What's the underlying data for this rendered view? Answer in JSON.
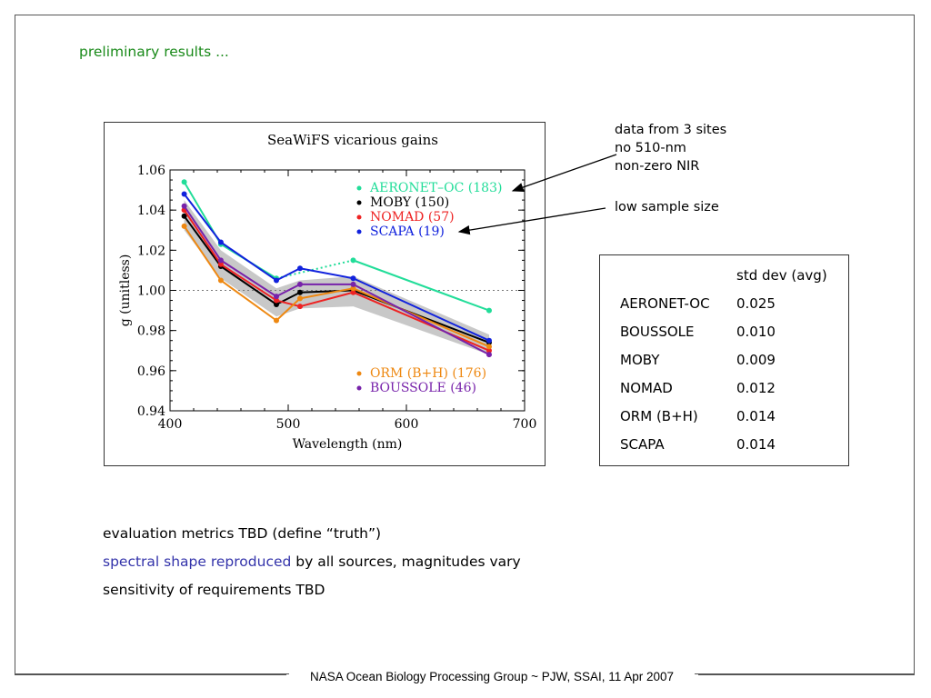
{
  "heading": "preliminary results ...",
  "chart_data": {
    "type": "line",
    "title": "SeaWiFS vicarious gains",
    "xlabel": "Wavelength (nm)",
    "ylabel": "g (unitless)",
    "xlim": [
      400,
      700
    ],
    "ylim": [
      0.94,
      1.06
    ],
    "xticks": [
      "400",
      "500",
      "600",
      "700"
    ],
    "yticks": [
      "0.94",
      "0.96",
      "0.98",
      "1.00",
      "1.02",
      "1.04",
      "1.06"
    ],
    "reference_line": 1.0,
    "legend_top": [
      "AERONET–OC (183)",
      "MOBY (150)",
      "NOMAD (57)",
      "SCAPA (19)"
    ],
    "legend_bottom": [
      "ORM (B+H) (176)",
      "BOUSSOLE (46)"
    ],
    "band": {
      "x": [
        412,
        443,
        490,
        510,
        555,
        670
      ],
      "lower": [
        1.03,
        1.006,
        0.987,
        0.991,
        0.992,
        0.968
      ],
      "upper": [
        1.045,
        1.02,
        1.001,
        1.005,
        1.007,
        0.978
      ]
    },
    "series": [
      {
        "name": "AERONET–OC (183)",
        "color": "#22dd99",
        "x": [
          412,
          443,
          490,
          555,
          670
        ],
        "y": [
          1.054,
          1.023,
          1.006,
          1.015,
          0.99
        ],
        "dotted_segment": 2
      },
      {
        "name": "MOBY (150)",
        "color": "#000000",
        "x": [
          412,
          443,
          490,
          510,
          555,
          670
        ],
        "y": [
          1.037,
          1.012,
          0.993,
          0.999,
          1.0,
          0.974
        ]
      },
      {
        "name": "NOMAD (57)",
        "color": "#ee2222",
        "x": [
          412,
          443,
          490,
          510,
          555,
          670
        ],
        "y": [
          1.04,
          1.013,
          0.995,
          0.992,
          0.999,
          0.97
        ]
      },
      {
        "name": "SCAPA (19)",
        "color": "#1122dd",
        "x": [
          412,
          443,
          490,
          510,
          555,
          670
        ],
        "y": [
          1.048,
          1.024,
          1.005,
          1.011,
          1.006,
          0.975
        ]
      },
      {
        "name": "ORM (B+H) (176)",
        "color": "#ee8811",
        "x": [
          412,
          443,
          490,
          510,
          555,
          670
        ],
        "y": [
          1.032,
          1.005,
          0.985,
          0.996,
          1.001,
          0.972
        ]
      },
      {
        "name": "BOUSSOLE (46)",
        "color": "#7722aa",
        "x": [
          412,
          443,
          490,
          510,
          555,
          670
        ],
        "y": [
          1.042,
          1.015,
          0.997,
          1.003,
          1.003,
          0.968
        ]
      }
    ]
  },
  "notes": {
    "top": [
      "data from 3 sites",
      "no 510-nm",
      "non-zero NIR"
    ],
    "bottom": "low sample size"
  },
  "table": {
    "header": "std dev (avg)",
    "rows": [
      {
        "name": "AERONET-OC",
        "value": "0.025"
      },
      {
        "name": "BOUSSOLE",
        "value": "0.010"
      },
      {
        "name": "MOBY",
        "value": "0.009"
      },
      {
        "name": "NOMAD",
        "value": "0.012"
      },
      {
        "name": "ORM (B+H)",
        "value": "0.014"
      },
      {
        "name": "SCAPA",
        "value": "0.014"
      }
    ]
  },
  "bullets": {
    "b1": "evaluation metrics TBD (define “truth”)",
    "b2_highlight": "spectral shape reproduced",
    "b2_rest": " by all sources, magnitudes vary",
    "b3": "sensitivity of requirements TBD"
  },
  "footer": "NASA Ocean Biology Processing Group ~ PJW, SSAI, 11 Apr 2007",
  "colors": {
    "heading": "#1a8a1a",
    "highlight": "#3333aa",
    "band": "#c8c8c8"
  }
}
